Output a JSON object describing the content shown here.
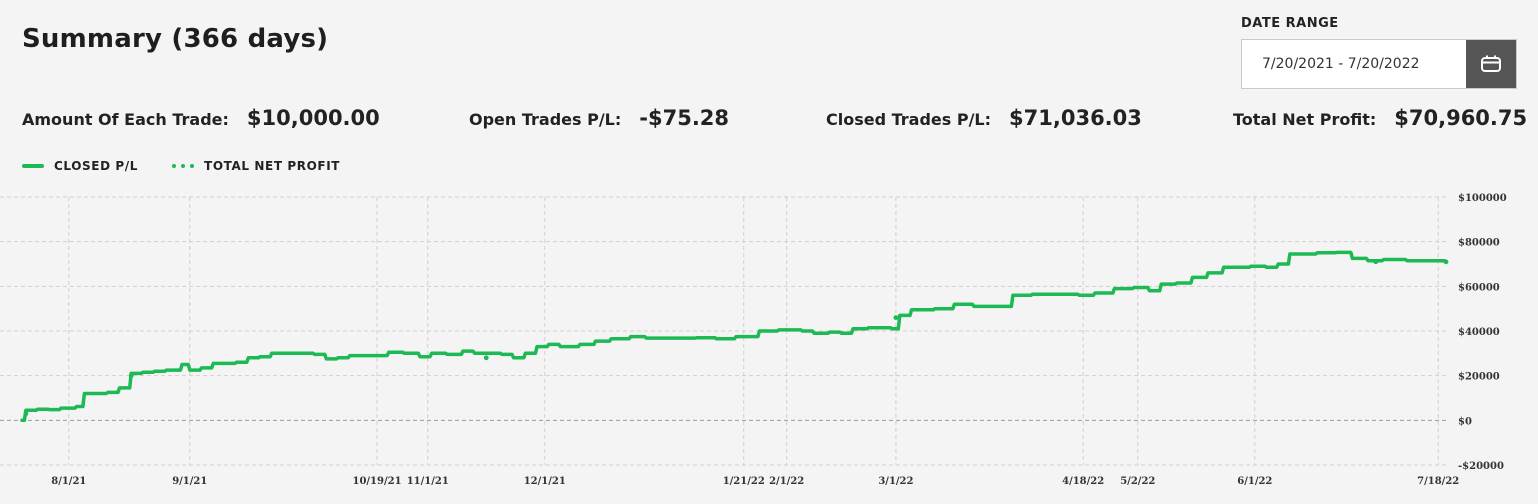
{
  "header": {
    "title": "Summary (366 days)",
    "date_range_label": "DATE RANGE",
    "date_range_value": "7/20/2021 - 7/20/2022",
    "calendar_icon": "calendar-icon"
  },
  "stats": [
    {
      "label": "Amount Of Each Trade:",
      "value": "$10,000.00"
    },
    {
      "label": "Open Trades P/L:",
      "value": "-$75.28"
    },
    {
      "label": "Closed Trades P/L:",
      "value": "$71,036.03"
    },
    {
      "label": "Total Net Profit:",
      "value": "$70,960.75"
    }
  ],
  "legend": [
    {
      "label": "CLOSED P/L",
      "style": "solid"
    },
    {
      "label": "TOTAL NET PROFIT",
      "style": "dotted"
    }
  ],
  "colors": {
    "series": "#1db954",
    "grid": "#cfcfcf",
    "zero": "#9a9a9a"
  },
  "chart_data": {
    "type": "line",
    "ylim": [
      -20000,
      100000
    ],
    "ytick_values": [
      100000,
      80000,
      60000,
      40000,
      20000,
      0,
      -20000
    ],
    "ytick_labels": [
      "$100000",
      "$80000",
      "$60000",
      "$40000",
      "$20000",
      "$0",
      "-$20000"
    ],
    "xticks": [
      {
        "label": "8/1/21",
        "x": "2021-08-01"
      },
      {
        "label": "9/1/21",
        "x": "2021-09-01"
      },
      {
        "label": "10/19/21",
        "x": "2021-10-19"
      },
      {
        "label": "11/1/21",
        "x": "2021-11-01"
      },
      {
        "label": "12/1/21",
        "x": "2021-12-01"
      },
      {
        "label": "1/21/22",
        "x": "2022-01-21"
      },
      {
        "label": "2/1/22",
        "x": "2022-02-01"
      },
      {
        "label": "3/1/22",
        "x": "2022-03-01"
      },
      {
        "label": "4/18/22",
        "x": "2022-04-18"
      },
      {
        "label": "5/2/22",
        "x": "2022-05-02"
      },
      {
        "label": "6/1/22",
        "x": "2022-06-01"
      },
      {
        "label": "7/18/22",
        "x": "2022-07-18"
      }
    ],
    "grid": true,
    "legend_position": "top-left",
    "series": [
      {
        "name": "CLOSED P/L",
        "style": "solid",
        "points": [
          [
            "2021-07-20",
            0
          ],
          [
            "2021-07-21",
            4500
          ],
          [
            "2021-07-24",
            5000
          ],
          [
            "2021-07-27",
            4800
          ],
          [
            "2021-07-30",
            5500
          ],
          [
            "2021-08-03",
            6200
          ],
          [
            "2021-08-05",
            12000
          ],
          [
            "2021-08-11",
            12500
          ],
          [
            "2021-08-14",
            14500
          ],
          [
            "2021-08-17",
            21000
          ],
          [
            "2021-08-20",
            21500
          ],
          [
            "2021-08-23",
            22000
          ],
          [
            "2021-08-26",
            22500
          ],
          [
            "2021-08-30",
            25000
          ],
          [
            "2021-09-01",
            22500
          ],
          [
            "2021-09-04",
            23500
          ],
          [
            "2021-09-07",
            25500
          ],
          [
            "2021-09-13",
            26000
          ],
          [
            "2021-09-16",
            28000
          ],
          [
            "2021-09-19",
            28500
          ],
          [
            "2021-09-22",
            30000
          ],
          [
            "2021-09-29",
            30000
          ],
          [
            "2021-10-03",
            29500
          ],
          [
            "2021-10-06",
            27500
          ],
          [
            "2021-10-09",
            28000
          ],
          [
            "2021-10-12",
            29000
          ],
          [
            "2021-10-19",
            29000
          ],
          [
            "2021-10-22",
            30500
          ],
          [
            "2021-10-26",
            30000
          ],
          [
            "2021-10-30",
            28500
          ],
          [
            "2021-11-02",
            30000
          ],
          [
            "2021-11-06",
            29500
          ],
          [
            "2021-11-10",
            31000
          ],
          [
            "2021-11-13",
            30000
          ],
          [
            "2021-11-20",
            29500
          ],
          [
            "2021-11-23",
            28000
          ],
          [
            "2021-11-26",
            30000
          ],
          [
            "2021-11-29",
            33000
          ],
          [
            "2021-12-02",
            34000
          ],
          [
            "2021-12-05",
            33000
          ],
          [
            "2021-12-10",
            34000
          ],
          [
            "2021-12-14",
            35500
          ],
          [
            "2021-12-18",
            36500
          ],
          [
            "2021-12-23",
            37500
          ],
          [
            "2021-12-27",
            36800
          ],
          [
            "2022-01-05",
            36800
          ],
          [
            "2022-01-09",
            37000
          ],
          [
            "2022-01-14",
            36500
          ],
          [
            "2022-01-19",
            37500
          ],
          [
            "2022-01-25",
            40000
          ],
          [
            "2022-01-30",
            40500
          ],
          [
            "2022-02-05",
            40000
          ],
          [
            "2022-02-08",
            39000
          ],
          [
            "2022-02-12",
            39500
          ],
          [
            "2022-02-15",
            39000
          ],
          [
            "2022-02-18",
            41000
          ],
          [
            "2022-02-22",
            41500
          ],
          [
            "2022-02-28",
            41000
          ],
          [
            "2022-03-02",
            47000
          ],
          [
            "2022-03-05",
            49500
          ],
          [
            "2022-03-11",
            50000
          ],
          [
            "2022-03-16",
            52000
          ],
          [
            "2022-03-21",
            51000
          ],
          [
            "2022-03-27",
            51000
          ],
          [
            "2022-03-31",
            56000
          ],
          [
            "2022-04-05",
            56500
          ],
          [
            "2022-04-13",
            56500
          ],
          [
            "2022-04-17",
            56000
          ],
          [
            "2022-04-21",
            57000
          ],
          [
            "2022-04-26",
            59000
          ],
          [
            "2022-05-01",
            59500
          ],
          [
            "2022-05-05",
            58000
          ],
          [
            "2022-05-08",
            61000
          ],
          [
            "2022-05-12",
            61500
          ],
          [
            "2022-05-16",
            64000
          ],
          [
            "2022-05-20",
            66000
          ],
          [
            "2022-05-24",
            68500
          ],
          [
            "2022-05-31",
            69000
          ],
          [
            "2022-06-04",
            68500
          ],
          [
            "2022-06-07",
            70000
          ],
          [
            "2022-06-10",
            74500
          ],
          [
            "2022-06-17",
            75000
          ],
          [
            "2022-06-22",
            75200
          ],
          [
            "2022-06-26",
            72500
          ],
          [
            "2022-06-30",
            71500
          ],
          [
            "2022-07-04",
            72000
          ],
          [
            "2022-07-10",
            71500
          ],
          [
            "2022-07-20",
            71036
          ]
        ]
      },
      {
        "name": "TOTAL NET PROFIT",
        "style": "dotted",
        "points": [
          [
            "2021-07-21",
            3000
          ],
          [
            "2021-08-17",
            20000
          ],
          [
            "2021-11-16",
            28000
          ],
          [
            "2022-03-01",
            46000
          ],
          [
            "2022-07-02",
            71000
          ],
          [
            "2022-07-20",
            70960
          ]
        ]
      }
    ]
  }
}
